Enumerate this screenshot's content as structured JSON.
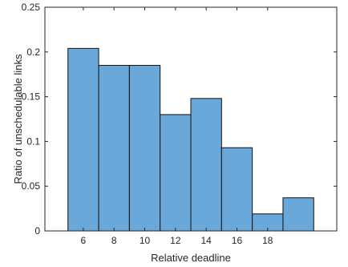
{
  "chart_data": {
    "type": "bar",
    "bins": [
      {
        "x0": 5.0,
        "x1": 7.0,
        "value": 0.204
      },
      {
        "x0": 7.0,
        "x1": 9.0,
        "value": 0.185
      },
      {
        "x0": 9.0,
        "x1": 11.0,
        "value": 0.185
      },
      {
        "x0": 11.0,
        "x1": 13.0,
        "value": 0.13
      },
      {
        "x0": 13.0,
        "x1": 15.0,
        "value": 0.148
      },
      {
        "x0": 15.0,
        "x1": 17.0,
        "value": 0.093
      },
      {
        "x0": 17.0,
        "x1": 19.0,
        "value": 0.019
      },
      {
        "x0": 19.0,
        "x1": 21.0,
        "value": 0.037
      }
    ],
    "xlabel": "Relative deadline",
    "ylabel": "Ratio of unschedulable links",
    "xlim": [
      3.5,
      22.5
    ],
    "ylim": [
      0,
      0.25
    ],
    "xticks": [
      6,
      8,
      10,
      12,
      14,
      16,
      18
    ],
    "yticks": [
      0,
      0.05,
      0.1,
      0.15,
      0.2,
      0.25
    ],
    "ytick_labels": [
      "0",
      "0.05",
      "0.1",
      "0.15",
      "0.2",
      "0.25"
    ],
    "bar_color": "#6aa8da",
    "edge_color": "#111111",
    "grid": false
  }
}
